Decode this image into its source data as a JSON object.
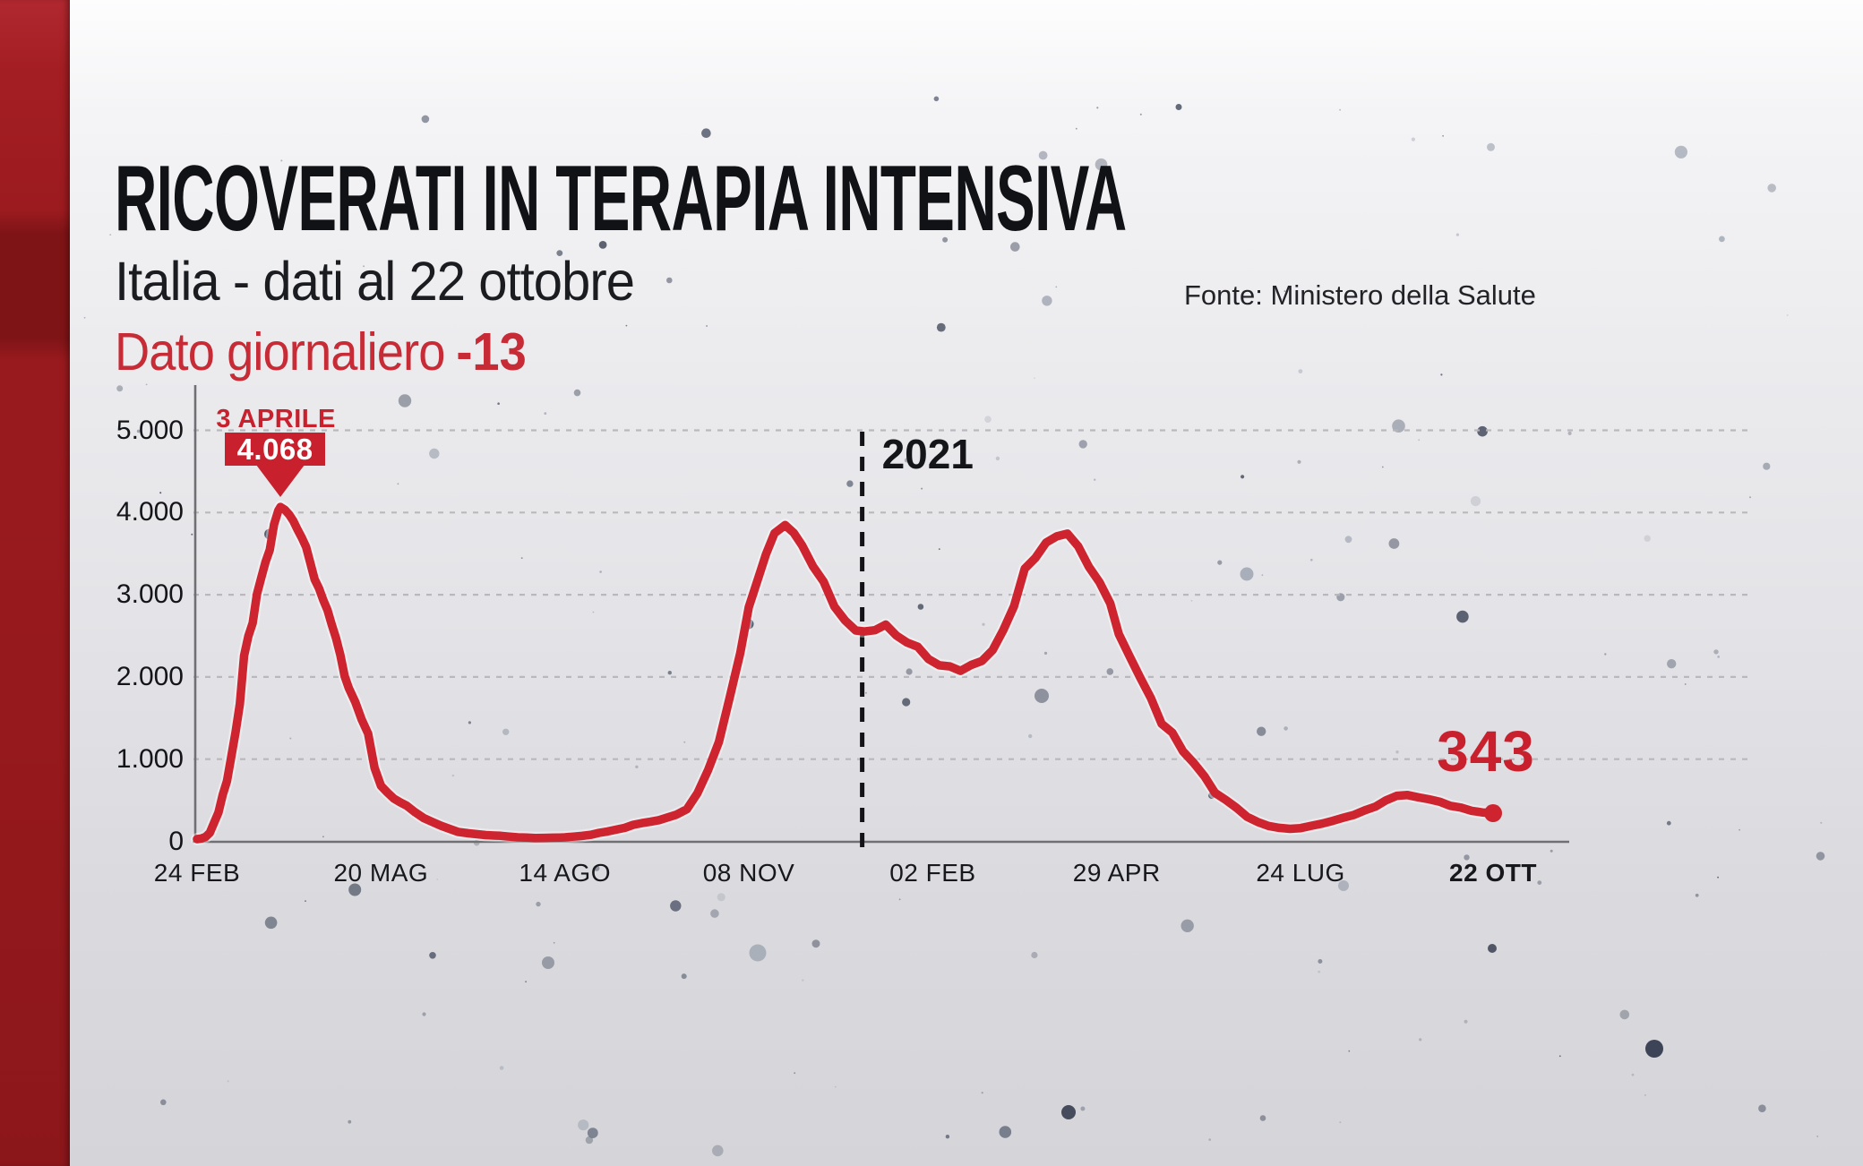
{
  "header": {
    "title": "RICOVERATI IN TERAPIA INTENSIVA",
    "subtitle": "Italia - dati al 22 ottobre",
    "source": "Fonte: Ministero della Salute",
    "daily_label": "Dato giornaliero",
    "daily_delta": "-13"
  },
  "colors": {
    "accent_red": "#ce2430",
    "badge_red": "#c8202d",
    "text_red": "#c62b36",
    "sidebar_red": "#96191d",
    "text_dark": "#141519",
    "grid_gray": "#b7b7bb",
    "axis_gray": "#6f6f74",
    "speckle_dark": "#2d3448",
    "speckle_light": "#9aa1ae"
  },
  "chart_data": {
    "type": "line",
    "title": "Ricoverati in terapia intensiva - Italia",
    "xlabel": "",
    "ylabel": "",
    "ylim": [
      0,
      5000
    ],
    "grid": "horizontal-dashed",
    "legend": "none",
    "y_ticks": [
      0,
      1000,
      2000,
      3000,
      4000,
      5000
    ],
    "y_tick_labels": [
      "0",
      "1.000",
      "2.000",
      "3.000",
      "4.000",
      "5.000"
    ],
    "x_tick_days": [
      0,
      86,
      172,
      258,
      344,
      430,
      516,
      606
    ],
    "x_tick_labels": [
      "24 FEB",
      "20 MAG",
      "14 AGO",
      "08 NOV",
      "02 FEB",
      "29 APR",
      "24 LUG",
      "22 OTT"
    ],
    "year_divider": {
      "label": "2021",
      "day": 311
    },
    "peak_annotation": {
      "date_label": "3 APRILE",
      "value_label": "4.068",
      "day": 39,
      "value": 4068
    },
    "end_annotation": {
      "value_label": "343",
      "day": 606,
      "value": 343
    },
    "series": [
      {
        "name": "Terapia intensiva",
        "color": "#ce2430",
        "points": [
          [
            0,
            27
          ],
          [
            2,
            35
          ],
          [
            4,
            56
          ],
          [
            6,
            105
          ],
          [
            8,
            229
          ],
          [
            10,
            351
          ],
          [
            12,
            567
          ],
          [
            14,
            733
          ],
          [
            16,
            1028
          ],
          [
            18,
            1328
          ],
          [
            20,
            1672
          ],
          [
            22,
            2257
          ],
          [
            24,
            2498
          ],
          [
            26,
            2655
          ],
          [
            28,
            3009
          ],
          [
            30,
            3204
          ],
          [
            32,
            3396
          ],
          [
            34,
            3546
          ],
          [
            36,
            3856
          ],
          [
            38,
            4023
          ],
          [
            39,
            4068
          ],
          [
            41,
            4035
          ],
          [
            43,
            3977
          ],
          [
            45,
            3898
          ],
          [
            47,
            3792
          ],
          [
            49,
            3693
          ],
          [
            51,
            3579
          ],
          [
            53,
            3381
          ],
          [
            55,
            3186
          ],
          [
            57,
            3079
          ],
          [
            59,
            2936
          ],
          [
            61,
            2812
          ],
          [
            63,
            2635
          ],
          [
            65,
            2471
          ],
          [
            67,
            2267
          ],
          [
            69,
            2009
          ],
          [
            71,
            1863
          ],
          [
            74,
            1694
          ],
          [
            77,
            1479
          ],
          [
            80,
            1311
          ],
          [
            83,
            893
          ],
          [
            86,
            676
          ],
          [
            89,
            595
          ],
          [
            92,
            521
          ],
          [
            95,
            475
          ],
          [
            98,
            435
          ],
          [
            102,
            353
          ],
          [
            106,
            283
          ],
          [
            110,
            236
          ],
          [
            114,
            191
          ],
          [
            118,
            152
          ],
          [
            122,
            115
          ],
          [
            127,
            98
          ],
          [
            131,
            87
          ],
          [
            135,
            76
          ],
          [
            139,
            71
          ],
          [
            142,
            68
          ],
          [
            146,
            58
          ],
          [
            150,
            49
          ],
          [
            154,
            46
          ],
          [
            158,
            41
          ],
          [
            162,
            42
          ],
          [
            166,
            45
          ],
          [
            170,
            47
          ],
          [
            172,
            49
          ],
          [
            176,
            58
          ],
          [
            180,
            66
          ],
          [
            184,
            79
          ],
          [
            188,
            104
          ],
          [
            192,
            121
          ],
          [
            196,
            143
          ],
          [
            200,
            164
          ],
          [
            204,
            201
          ],
          [
            208,
            222
          ],
          [
            212,
            239
          ],
          [
            216,
            258
          ],
          [
            220,
            291
          ],
          [
            224,
            323
          ],
          [
            229,
            390
          ],
          [
            234,
            586
          ],
          [
            239,
            870
          ],
          [
            244,
            1208
          ],
          [
            249,
            1746
          ],
          [
            254,
            2292
          ],
          [
            258,
            2849
          ],
          [
            262,
            3170
          ],
          [
            266,
            3492
          ],
          [
            270,
            3748
          ],
          [
            275,
            3848
          ],
          [
            279,
            3753
          ],
          [
            283,
            3597
          ],
          [
            288,
            3345
          ],
          [
            293,
            3158
          ],
          [
            298,
            2855
          ],
          [
            303,
            2687
          ],
          [
            308,
            2565
          ],
          [
            312,
            2553
          ],
          [
            317,
            2569
          ],
          [
            322,
            2636
          ],
          [
            327,
            2503
          ],
          [
            332,
            2418
          ],
          [
            337,
            2367
          ],
          [
            342,
            2218
          ],
          [
            347,
            2142
          ],
          [
            352,
            2128
          ],
          [
            357,
            2074
          ],
          [
            362,
            2146
          ],
          [
            367,
            2194
          ],
          [
            372,
            2327
          ],
          [
            377,
            2571
          ],
          [
            382,
            2859
          ],
          [
            387,
            3317
          ],
          [
            392,
            3448
          ],
          [
            397,
            3635
          ],
          [
            402,
            3710
          ],
          [
            407,
            3743
          ],
          [
            412,
            3588
          ],
          [
            417,
            3340
          ],
          [
            422,
            3151
          ],
          [
            427,
            2894
          ],
          [
            431,
            2522
          ],
          [
            436,
            2253
          ],
          [
            441,
            1992
          ],
          [
            446,
            1742
          ],
          [
            451,
            1430
          ],
          [
            456,
            1323
          ],
          [
            461,
            1095
          ],
          [
            466,
            954
          ],
          [
            471,
            794
          ],
          [
            476,
            589
          ],
          [
            481,
            504
          ],
          [
            486,
            408
          ],
          [
            491,
            298
          ],
          [
            496,
            235
          ],
          [
            501,
            187
          ],
          [
            506,
            165
          ],
          [
            511,
            153
          ],
          [
            516,
            161
          ],
          [
            521,
            189
          ],
          [
            526,
            216
          ],
          [
            531,
            249
          ],
          [
            536,
            288
          ],
          [
            541,
            322
          ],
          [
            546,
            377
          ],
          [
            551,
            423
          ],
          [
            556,
            500
          ],
          [
            561,
            554
          ],
          [
            566,
            563
          ],
          [
            571,
            536
          ],
          [
            576,
            512
          ],
          [
            581,
            483
          ],
          [
            586,
            433
          ],
          [
            591,
            411
          ],
          [
            596,
            371
          ],
          [
            601,
            352
          ],
          [
            606,
            343
          ]
        ]
      }
    ]
  }
}
